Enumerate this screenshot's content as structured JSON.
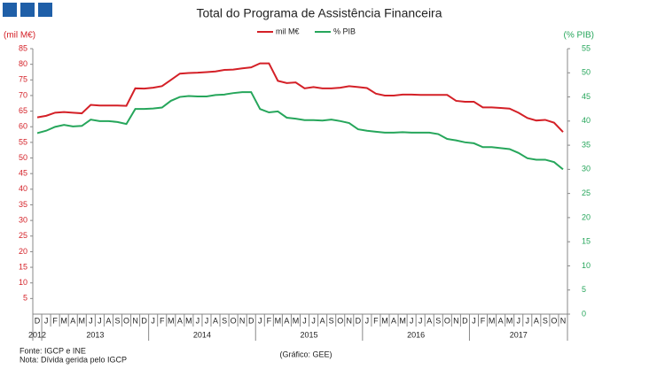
{
  "chart_data": {
    "type": "line",
    "title": "Total do Programa de Assistência Financeira",
    "y_label": "(mil M€)",
    "y2_label": "(% PIB)",
    "categories": [
      "D",
      "J",
      "F",
      "M",
      "A",
      "M",
      "J",
      "J",
      "A",
      "S",
      "O",
      "N",
      "D",
      "J",
      "F",
      "M",
      "A",
      "M",
      "J",
      "J",
      "A",
      "S",
      "O",
      "N",
      "D",
      "J",
      "F",
      "M",
      "A",
      "M",
      "J",
      "J",
      "A",
      "S",
      "O",
      "N",
      "D",
      "J",
      "F",
      "M",
      "A",
      "M",
      "J",
      "J",
      "A",
      "S",
      "O",
      "N",
      "D",
      "J",
      "F",
      "M",
      "A",
      "M",
      "J",
      "J",
      "A",
      "S",
      "O",
      "N"
    ],
    "years": [
      "2012",
      "2013",
      "2014",
      "2015",
      "2016",
      "2017"
    ],
    "series": [
      {
        "name": "mil M€",
        "color": "#d42027",
        "values": [
          63,
          63.5,
          64.5,
          64.7,
          64.5,
          64.3,
          67,
          66.8,
          66.8,
          66.8,
          66.7,
          72.3,
          72.2,
          72.5,
          73,
          75,
          77,
          77.2,
          77.3,
          77.5,
          77.7,
          78.2,
          78.3,
          78.7,
          79,
          80.3,
          80.3,
          74.7,
          74,
          74.2,
          72.3,
          72.7,
          72.3,
          72.3,
          72.5,
          73,
          72.7,
          72.4,
          70.6,
          70,
          70,
          70.3,
          70.3,
          70.2,
          70.2,
          70.2,
          70.2,
          68.3,
          68,
          68,
          66.2,
          66.2,
          66,
          65.8,
          64.5,
          62.8,
          62,
          62.2,
          61.3,
          58.3
        ]
      },
      {
        "name": "% PIB",
        "color": "#26a65b",
        "axis": "y2",
        "values": [
          37.5,
          38,
          38.8,
          39.2,
          38.9,
          39,
          40.3,
          40,
          40,
          39.8,
          39.4,
          42.5,
          42.5,
          42.6,
          42.8,
          44.2,
          45,
          45.2,
          45.1,
          45.1,
          45.4,
          45.5,
          45.8,
          46,
          46,
          42.5,
          41.8,
          42,
          40.7,
          40.5,
          40.2,
          40.2,
          40.1,
          40.3,
          40,
          39.6,
          38.3,
          38,
          37.8,
          37.6,
          37.6,
          37.7,
          37.6,
          37.6,
          37.6,
          37.3,
          36.3,
          36,
          35.6,
          35.4,
          34.6,
          34.6,
          34.4,
          34.2,
          33.4,
          32.3,
          32,
          32,
          31.5,
          30
        ]
      }
    ],
    "ylim": [
      0,
      85
    ],
    "yticks": [
      5,
      10,
      15,
      20,
      25,
      30,
      35,
      40,
      45,
      50,
      55,
      60,
      65,
      70,
      75,
      80,
      85
    ],
    "y2lim": [
      0,
      55
    ],
    "y2ticks": [
      0,
      5,
      10,
      15,
      20,
      25,
      30,
      35,
      40,
      45,
      50,
      55
    ],
    "notes": [
      "Fonte: IGCP e INE",
      "Nota: Dívida gerida pelo IGCP"
    ],
    "credit": "(Gráfico: GEE)"
  }
}
